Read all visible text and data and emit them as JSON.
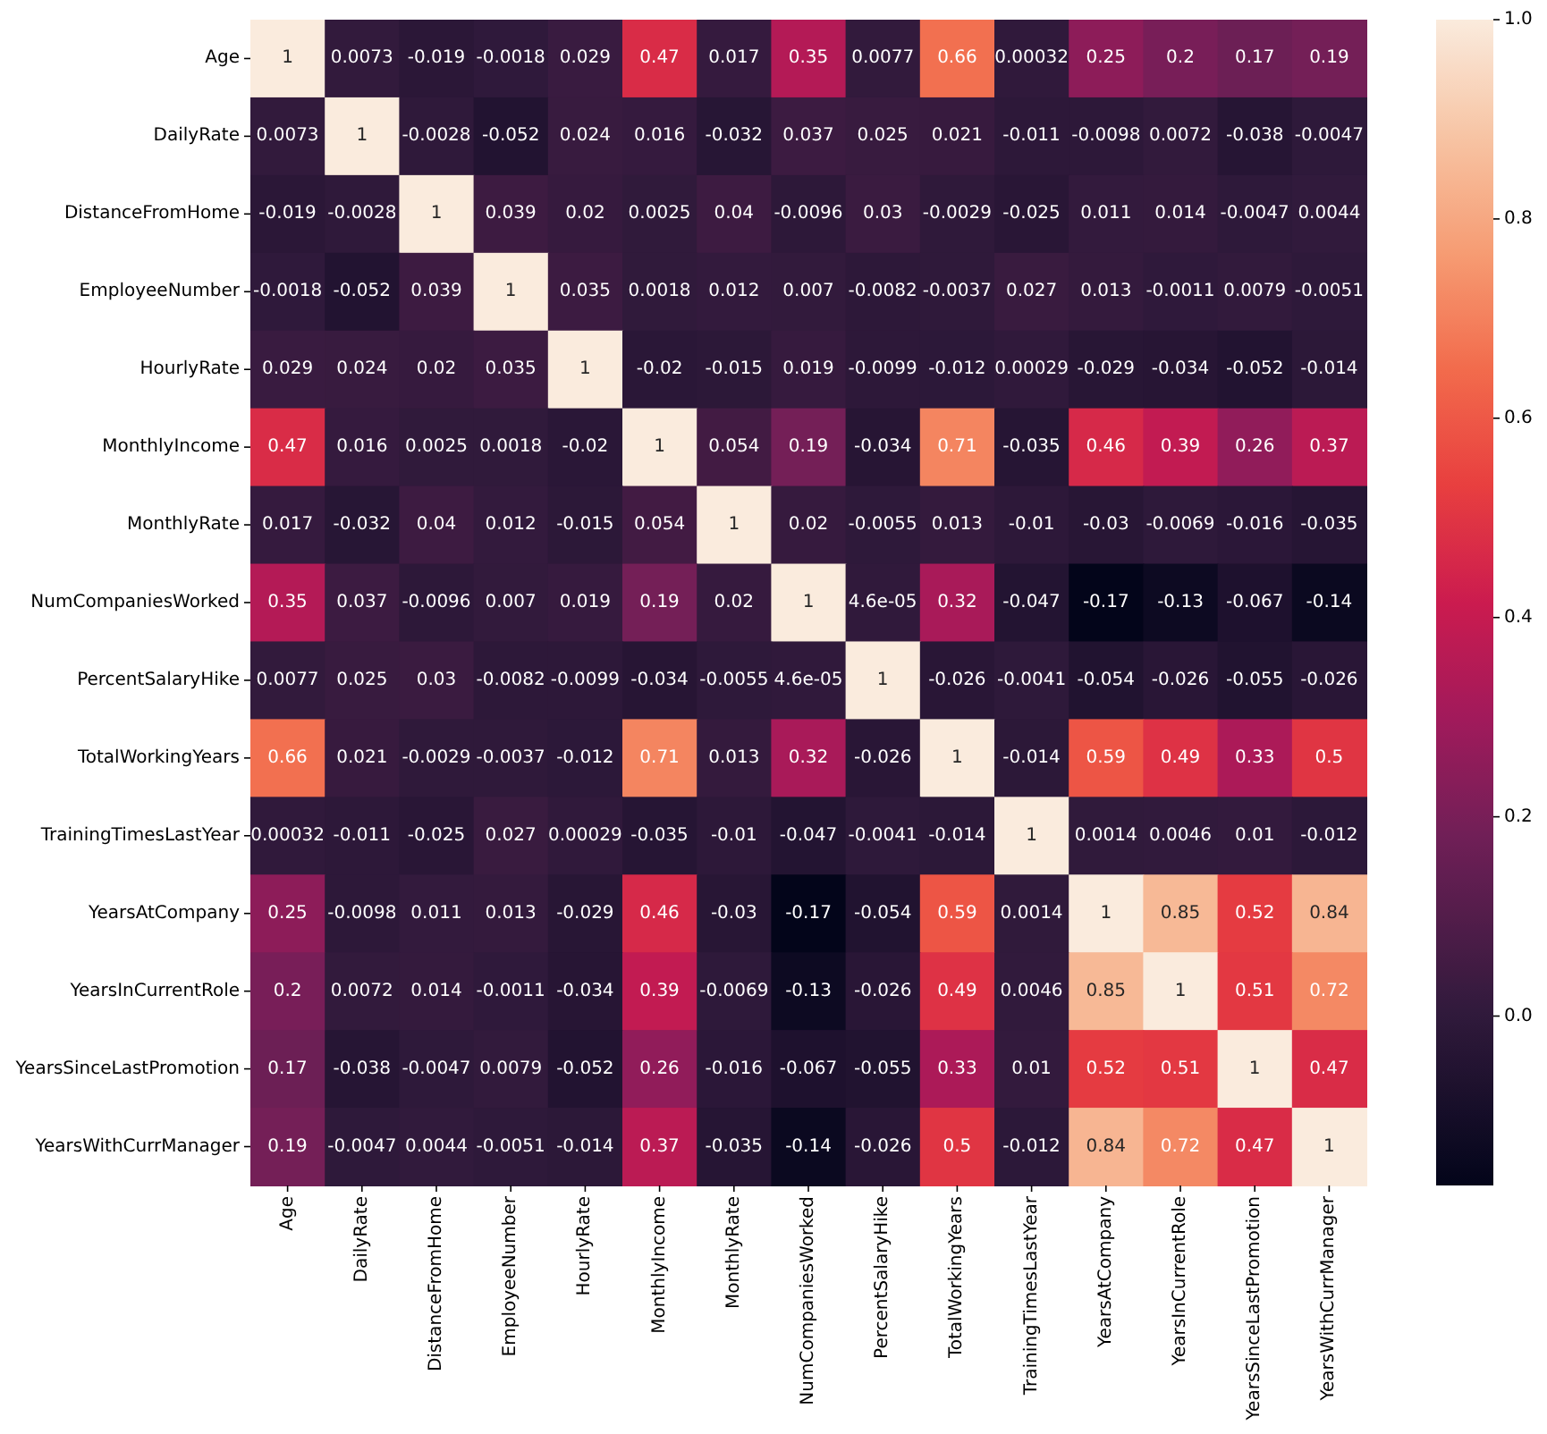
{
  "chart_data": {
    "type": "heatmap",
    "categories": [
      "Age",
      "DailyRate",
      "DistanceFromHome",
      "EmployeeNumber",
      "HourlyRate",
      "MonthlyIncome",
      "MonthlyRate",
      "NumCompaniesWorked",
      "PercentSalaryHike",
      "TotalWorkingYears",
      "TrainingTimesLastYear",
      "YearsAtCompany",
      "YearsInCurrentRole",
      "YearsSinceLastPromotion",
      "YearsWithCurrManager"
    ],
    "y_categories": [
      "Age",
      "DailyRate",
      "DistanceFromHome",
      "EmployeeNumber",
      "HourlyRate",
      "MonthlyIncome",
      "MonthlyRate",
      "NumCompaniesWorked",
      "PercentSalaryHike",
      "TotalWorkingYears",
      "TrainingTimesLastYear",
      "YearsAtCompany",
      "YearsInCurrentRole",
      "YearsSinceLastPromotion",
      "YearsWithCurrManager"
    ],
    "cells": [
      [
        1,
        0.0073,
        -0.019,
        -0.0018,
        0.029,
        0.47,
        0.017,
        0.35,
        0.0077,
        0.66,
        0.00032,
        0.25,
        0.2,
        0.17,
        0.19
      ],
      [
        0.0073,
        1,
        -0.0028,
        -0.052,
        0.024,
        0.016,
        -0.032,
        0.037,
        0.025,
        0.021,
        -0.011,
        -0.0098,
        0.0072,
        -0.038,
        -0.0047
      ],
      [
        -0.019,
        -0.0028,
        1,
        0.039,
        0.02,
        0.0025,
        0.04,
        -0.0096,
        0.03,
        -0.0029,
        -0.025,
        0.011,
        0.014,
        -0.0047,
        0.0044
      ],
      [
        -0.0018,
        -0.052,
        0.039,
        1,
        0.035,
        0.0018,
        0.012,
        0.007,
        -0.0082,
        -0.0037,
        0.027,
        0.013,
        -0.0011,
        0.0079,
        -0.0051
      ],
      [
        0.029,
        0.024,
        0.02,
        0.035,
        1,
        -0.02,
        -0.015,
        0.019,
        -0.0099,
        -0.012,
        0.00029,
        -0.029,
        -0.034,
        -0.052,
        -0.014
      ],
      [
        0.47,
        0.016,
        0.0025,
        0.0018,
        -0.02,
        1,
        0.054,
        0.19,
        -0.034,
        0.71,
        -0.035,
        0.46,
        0.39,
        0.26,
        0.37
      ],
      [
        0.017,
        -0.032,
        0.04,
        0.012,
        -0.015,
        0.054,
        1,
        0.02,
        -0.0055,
        0.013,
        -0.01,
        -0.03,
        -0.0069,
        -0.016,
        -0.035
      ],
      [
        0.35,
        0.037,
        -0.0096,
        0.007,
        0.019,
        0.19,
        0.02,
        1,
        4.6e-05,
        0.32,
        -0.047,
        -0.17,
        -0.13,
        -0.067,
        -0.14
      ],
      [
        0.0077,
        0.025,
        0.03,
        -0.0082,
        -0.0099,
        -0.034,
        -0.0055,
        4.6e-05,
        1,
        -0.026,
        -0.0041,
        -0.054,
        -0.026,
        -0.055,
        -0.026
      ],
      [
        0.66,
        0.021,
        -0.0029,
        -0.0037,
        -0.012,
        0.71,
        0.013,
        0.32,
        -0.026,
        1,
        -0.014,
        0.59,
        0.49,
        0.33,
        0.5
      ],
      [
        0.00032,
        -0.011,
        -0.025,
        0.027,
        0.00029,
        -0.035,
        -0.01,
        -0.047,
        -0.0041,
        -0.014,
        1,
        0.0014,
        0.0046,
        0.01,
        -0.012
      ],
      [
        0.25,
        -0.0098,
        0.011,
        0.013,
        -0.029,
        0.46,
        -0.03,
        -0.17,
        -0.054,
        0.59,
        0.0014,
        1,
        0.85,
        0.52,
        0.84
      ],
      [
        0.2,
        0.0072,
        0.014,
        -0.0011,
        -0.034,
        0.39,
        -0.0069,
        -0.13,
        -0.026,
        0.49,
        0.0046,
        0.85,
        1,
        0.51,
        0.72
      ],
      [
        0.17,
        -0.038,
        -0.0047,
        0.0079,
        -0.052,
        0.26,
        -0.016,
        -0.067,
        -0.055,
        0.33,
        0.01,
        0.52,
        0.51,
        1,
        0.47
      ],
      [
        0.19,
        -0.0047,
        0.0044,
        -0.0051,
        -0.014,
        0.37,
        -0.035,
        -0.14,
        -0.026,
        0.5,
        -0.012,
        0.84,
        0.72,
        0.47,
        1
      ]
    ],
    "data_labels": true,
    "clim": [
      -0.17,
      1
    ],
    "cticks": [
      {
        "value": 0,
        "label": "0.0"
      },
      {
        "value": 0.2,
        "label": "0.2"
      },
      {
        "value": 0.4,
        "label": "0.4"
      },
      {
        "value": 0.6,
        "label": "0.6"
      },
      {
        "value": 0.8,
        "label": "0.8"
      },
      {
        "value": 1,
        "label": "1.0"
      }
    ]
  }
}
